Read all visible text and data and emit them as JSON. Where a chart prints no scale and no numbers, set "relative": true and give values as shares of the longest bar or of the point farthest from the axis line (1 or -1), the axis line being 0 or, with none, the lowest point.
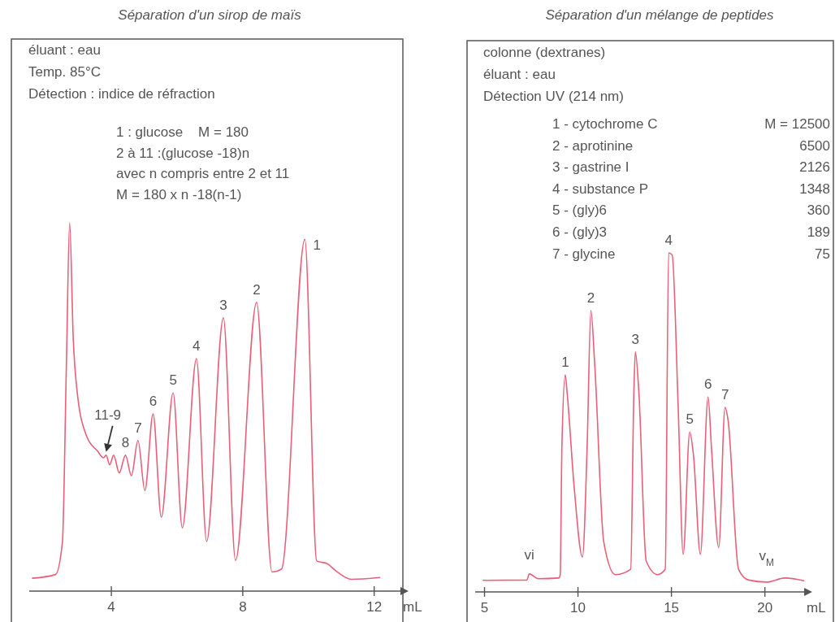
{
  "chart_data": [
    {
      "type": "line",
      "title": "Séparation d'un sirop de maïs",
      "xlabel": "mL",
      "xlim": [
        1.5,
        12.8
      ],
      "xticks": [
        4,
        8,
        12
      ],
      "relative": true,
      "color": "#e8607a",
      "x": [
        1.6,
        2.3,
        2.51,
        2.63,
        2.73,
        2.84,
        2.96,
        3.25,
        3.58,
        3.76,
        3.84,
        3.95,
        4.07,
        4.24,
        4.43,
        4.61,
        4.81,
        5.02,
        5.27,
        5.52,
        5.88,
        6.16,
        6.59,
        6.9,
        7.41,
        7.78,
        8.42,
        8.89,
        9.18,
        9.89,
        10.25,
        10.58,
        10.82,
        11.31,
        12.17
      ],
      "values": [
        0.035,
        0.045,
        0.133,
        0.61,
        1.0,
        0.685,
        0.54,
        0.42,
        0.38,
        0.362,
        0.369,
        0.343,
        0.369,
        0.321,
        0.369,
        0.313,
        0.409,
        0.273,
        0.481,
        0.201,
        0.538,
        0.172,
        0.631,
        0.135,
        0.742,
        0.083,
        0.784,
        0.052,
        0.06,
        0.955,
        0.082,
        0.074,
        0.056,
        0.032,
        0.037
      ],
      "annotations": [
        "éluant : eau",
        "Temp. 85°C",
        "Détection : indice de réfraction",
        "1 : glucose    M = 180",
        "2 à 11 :(glucose -18)n",
        "avec n compris entre 2 et 11",
        "M = 180 x n -18(n-1)",
        {
          "text": "1",
          "x": 9.89,
          "y": 0.955
        },
        {
          "text": "2",
          "x": 8.42,
          "y": 0.784
        },
        {
          "text": "3",
          "x": 7.41,
          "y": 0.742
        },
        {
          "text": "4",
          "x": 6.59,
          "y": 0.631
        },
        {
          "text": "5",
          "x": 5.88,
          "y": 0.538
        },
        {
          "text": "6",
          "x": 5.27,
          "y": 0.481
        },
        {
          "text": "7",
          "x": 4.81,
          "y": 0.409
        },
        {
          "text": "8",
          "x": 4.43,
          "y": 0.369
        },
        {
          "text": "11-9",
          "x": 3.84,
          "y": 0.369
        }
      ]
    },
    {
      "type": "line",
      "title": "Séparation d'un mélange de peptides",
      "xlabel": "mL",
      "xlim": [
        4.5,
        22.1
      ],
      "xticks": [
        5,
        10,
        15,
        20
      ],
      "relative": true,
      "color": "#e8607a",
      "x": [
        4.93,
        7.26,
        7.4,
        7.88,
        8.98,
        9.05,
        9.14,
        9.32,
        9.42,
        9.8,
        10.24,
        10.49,
        10.69,
        10.9,
        11.38,
        12.0,
        12.82,
        12.99,
        13.07,
        13.26,
        13.65,
        14.26,
        14.67,
        14.85,
        15.04,
        15.36,
        15.63,
        15.98,
        16.18,
        16.55,
        16.96,
        17.14,
        17.53,
        17.87,
        18.03,
        18.59,
        19.13,
        20.09,
        21.06,
        22.08
      ],
      "values": [
        0.034,
        0.035,
        0.053,
        0.039,
        0.041,
        0.051,
        0.427,
        0.64,
        0.587,
        0.307,
        0.103,
        0.427,
        0.83,
        0.667,
        0.147,
        0.051,
        0.067,
        0.587,
        0.708,
        0.587,
        0.091,
        0.051,
        0.067,
        1.0,
        0.994,
        0.547,
        0.111,
        0.472,
        0.403,
        0.111,
        0.575,
        0.427,
        0.131,
        0.544,
        0.507,
        0.067,
        0.035,
        0.029,
        0.041,
        0.033
      ],
      "annotations": [
        "colonne (dextranes)",
        "éluant : eau",
        "Détection UV (214 nm)",
        "1 - cytochrome C",
        "M = 12500",
        "2 - aprotinine",
        "6500",
        "3 - gastrine I",
        "2126",
        "4 - substance P",
        "1348",
        "5 - (gly)6",
        "360",
        "6 - (gly)3",
        "189",
        "7 - glycine",
        "75",
        {
          "text": "1",
          "x": 9.32,
          "y": 0.64
        },
        {
          "text": "2",
          "x": 10.69,
          "y": 0.83
        },
        {
          "text": "3",
          "x": 13.07,
          "y": 0.708
        },
        {
          "text": "4",
          "x": 14.85,
          "y": 1.0
        },
        {
          "text": "5",
          "x": 15.98,
          "y": 0.472
        },
        {
          "text": "6",
          "x": 16.96,
          "y": 0.575
        },
        {
          "text": "7",
          "x": 17.87,
          "y": 0.544
        },
        {
          "text": "vi",
          "x": 7.4,
          "y": 0.053
        },
        {
          "text": "v$_{M}$",
          "x": 20.09,
          "y": 0.029
        }
      ]
    }
  ]
}
